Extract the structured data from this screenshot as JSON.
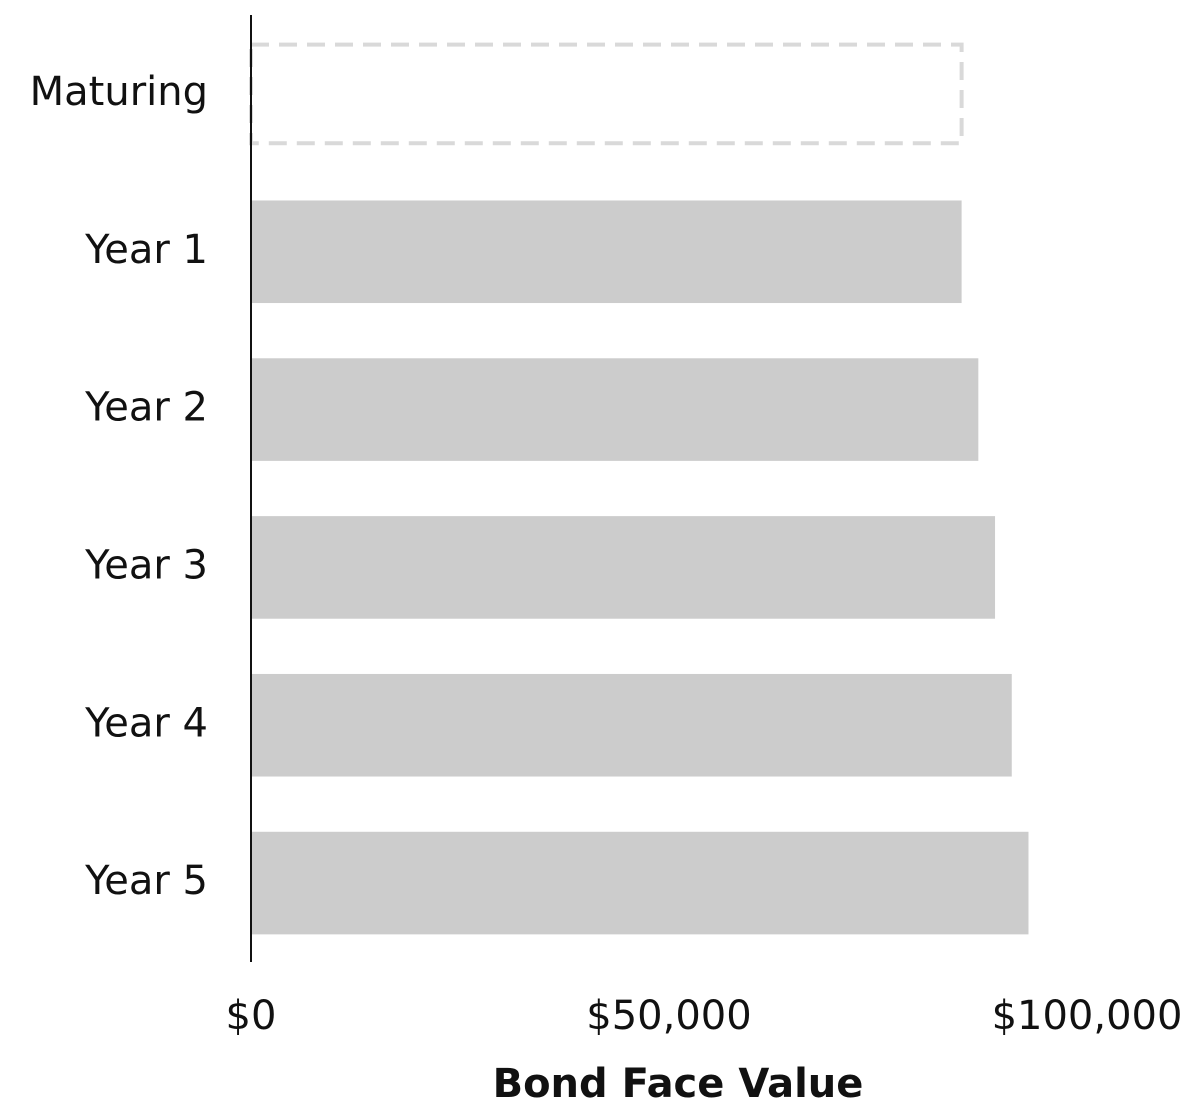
{
  "chart_data": {
    "type": "hbar",
    "categories": [
      "Maturing",
      "Year 1",
      "Year 2",
      "Year 3",
      "Year 4",
      "Year 5"
    ],
    "values": [
      85000,
      85000,
      87000,
      89000,
      91000,
      93000
    ],
    "bar_styles": [
      "dashed",
      "solid",
      "solid",
      "solid",
      "solid",
      "solid"
    ],
    "color": "#cccccc",
    "xlabel": "Bond Face Value",
    "xlim": [
      0,
      100000
    ],
    "xticks": [
      {
        "value": 0,
        "label": "$0"
      },
      {
        "value": 50000,
        "label": "$50,000"
      },
      {
        "value": 100000,
        "label": "$100,000"
      }
    ],
    "grid": false
  }
}
